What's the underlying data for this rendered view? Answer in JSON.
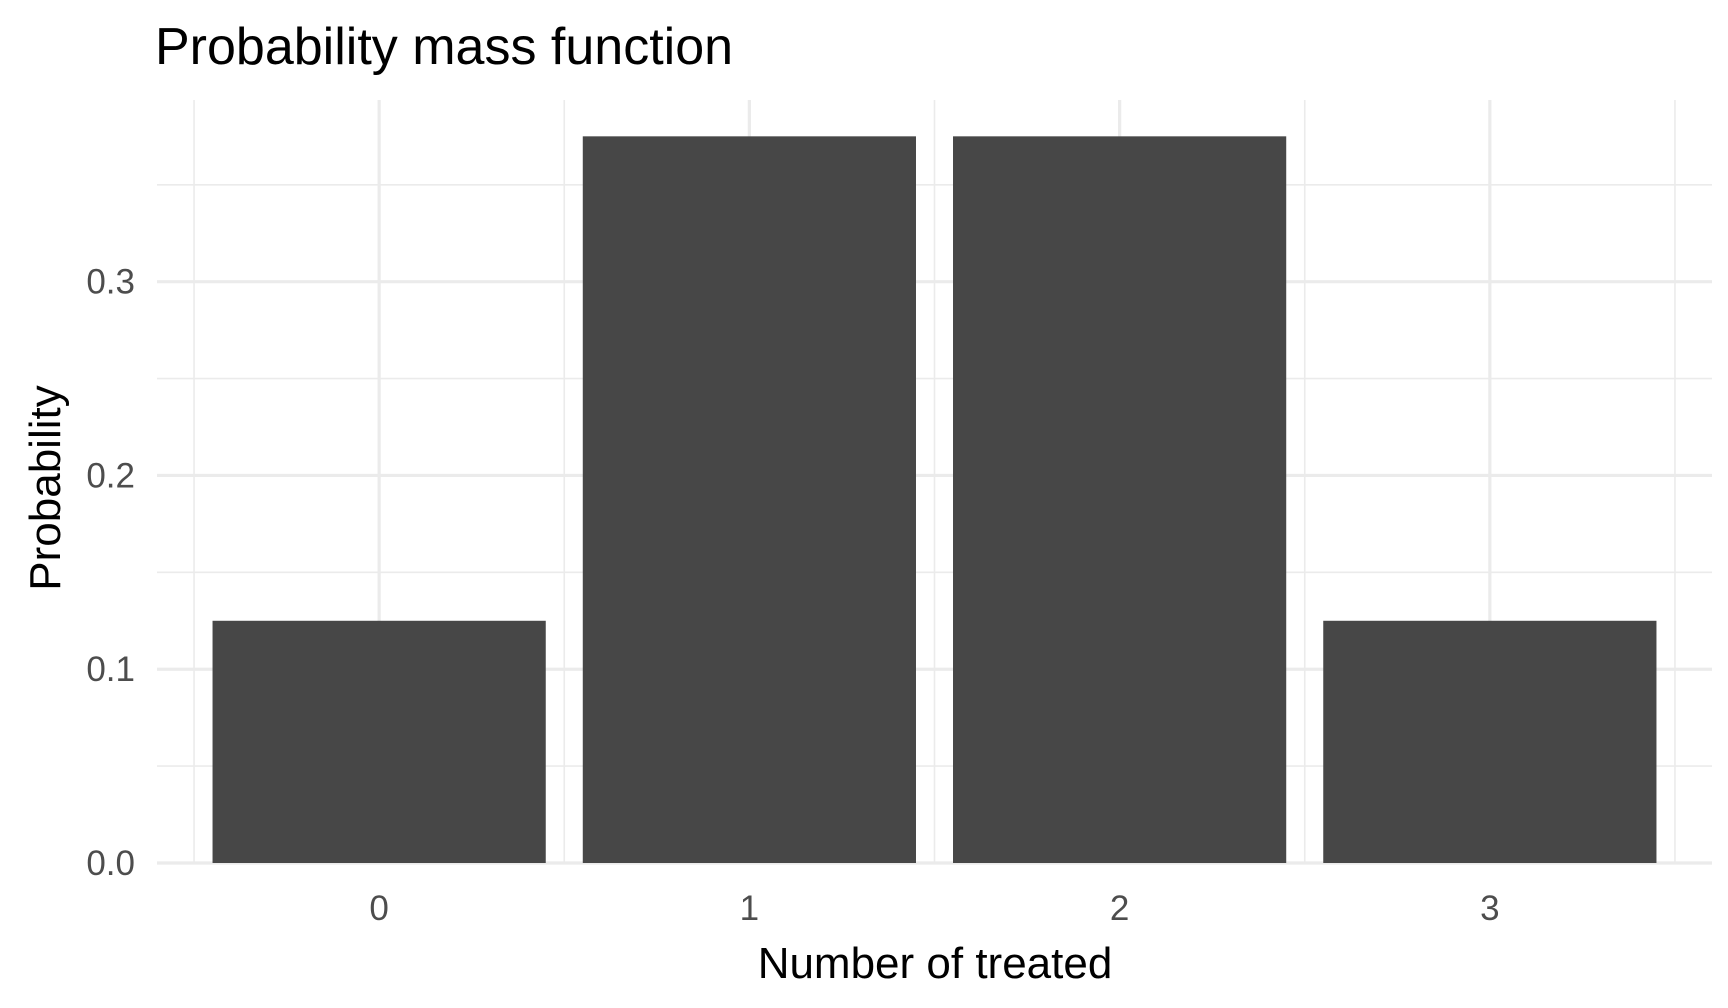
{
  "chart_data": {
    "type": "bar",
    "title": "Probability mass function",
    "xlabel": "Number of treated",
    "ylabel": "Probability",
    "categories": [
      "0",
      "1",
      "2",
      "3"
    ],
    "values": [
      0.125,
      0.375,
      0.375,
      0.125
    ],
    "y_ticks": [
      "0.0",
      "0.1",
      "0.2",
      "0.3"
    ],
    "ylim": [
      0,
      0.39375
    ],
    "grid": true,
    "bar_color": "#474747",
    "grid_color": "#ebebeb"
  }
}
